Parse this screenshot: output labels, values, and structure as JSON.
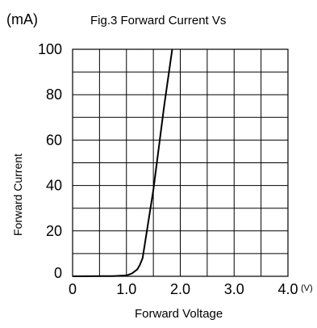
{
  "chart_data": {
    "type": "line",
    "title": "Fig.3 Forward Current Vs",
    "xlabel": "Forward  Voltage",
    "ylabel": "Forward Current",
    "y_unit": "(mA)",
    "x_unit": "(V)",
    "xlim": [
      0,
      4.0
    ],
    "ylim": [
      0,
      100
    ],
    "grid": true,
    "x_ticks": [
      {
        "value": 0,
        "label": "0"
      },
      {
        "value": 1.0,
        "label": "1.0"
      },
      {
        "value": 2.0,
        "label": "2.0"
      },
      {
        "value": 3.0,
        "label": "3.0"
      },
      {
        "value": 4.0,
        "label": "4.0"
      }
    ],
    "y_ticks": [
      {
        "value": 0,
        "label": "0"
      },
      {
        "value": 20,
        "label": "20"
      },
      {
        "value": 40,
        "label": "40"
      },
      {
        "value": 60,
        "label": "60"
      },
      {
        "value": 80,
        "label": "80"
      },
      {
        "value": 100,
        "label": "100"
      }
    ],
    "series": [
      {
        "color": "#000000",
        "points": [
          {
            "x": 0.0,
            "y": 0.0
          },
          {
            "x": 0.75,
            "y": 0.1
          },
          {
            "x": 1.0,
            "y": 0.4
          },
          {
            "x": 1.1,
            "y": 1.2
          },
          {
            "x": 1.2,
            "y": 3.0
          },
          {
            "x": 1.25,
            "y": 5.0
          },
          {
            "x": 1.3,
            "y": 8.0
          },
          {
            "x": 1.5,
            "y": 38.0
          },
          {
            "x": 1.7,
            "y": 75.0
          },
          {
            "x": 1.85,
            "y": 100.0
          }
        ]
      }
    ]
  }
}
